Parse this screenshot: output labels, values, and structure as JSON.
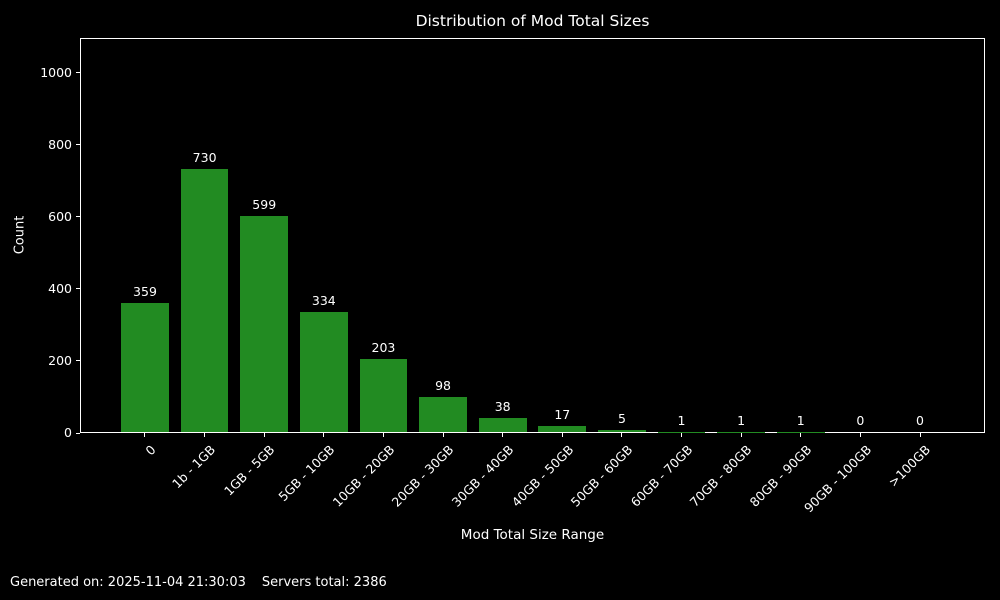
{
  "figure": {
    "background": "#000000",
    "text_color": "#ffffff",
    "axis_color": "#ffffff"
  },
  "chart_data": {
    "type": "bar",
    "title": "Distribution of Mod Total Sizes",
    "xlabel": "Mod Total Size Range",
    "ylabel": "Count",
    "categories": [
      "0",
      "1b - 1GB",
      "1GB - 5GB",
      "5GB - 10GB",
      "10GB - 20GB",
      "20GB - 30GB",
      "30GB - 40GB",
      "40GB - 50GB",
      "50GB - 60GB",
      "60GB - 70GB",
      "70GB - 80GB",
      "80GB - 90GB",
      "90GB - 100GB",
      ">100GB"
    ],
    "values": [
      359,
      730,
      599,
      334,
      203,
      98,
      38,
      17,
      5,
      1,
      1,
      1,
      0,
      0
    ],
    "yticks": [
      0,
      200,
      400,
      600,
      800,
      1000
    ],
    "ylim": [
      0,
      1097
    ],
    "xtick_rotation": 45,
    "grid": false,
    "legend": null,
    "bar_value_labels": true,
    "bar_color": "#228B22"
  },
  "footer": {
    "generated_label": "Generated on: 2025-11-04 21:30:03",
    "servers_total_label": "Servers total: 2386"
  }
}
